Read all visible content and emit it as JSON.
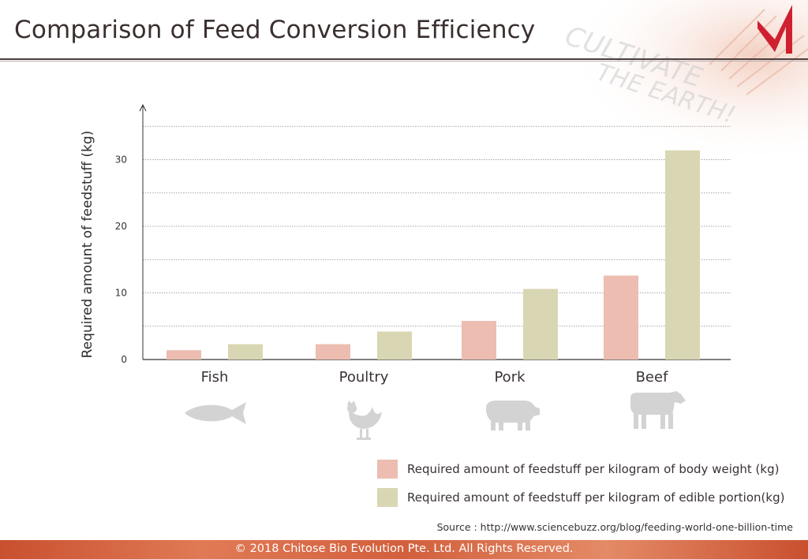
{
  "title": "Comparison of Feed Conversion Efficiency",
  "watermark": [
    "CULTIVATE",
    "THE EARTH!"
  ],
  "colors": {
    "body_weight": "#ecbdb0",
    "edible_portion": "#d9d7b3",
    "animal_silhouette": "#d3d3d3",
    "logo": "#d0202f",
    "footer": "#d2603d"
  },
  "icons": [
    "fish-icon",
    "rooster-icon",
    "pig-icon",
    "cow-icon"
  ],
  "chart_data": {
    "type": "bar",
    "categories": [
      "Fish",
      "Poultry",
      "Pork",
      "Beef"
    ],
    "series": [
      {
        "name": "Required amount of feedstuff per kilogram of body weight (kg)",
        "values": [
          1.4,
          2.3,
          5.8,
          12.6
        ]
      },
      {
        "name": "Required amount of feedstuff per kilogram of edible portion(kg)",
        "values": [
          2.3,
          4.2,
          10.6,
          31.4
        ]
      }
    ],
    "ylabel": "Required amount of feedstuff (kg)",
    "xlabel": "",
    "yticks": [
      0,
      10,
      20,
      30
    ],
    "ylim": [
      0,
      35
    ],
    "grid": true,
    "legend_placement": "bottom-right"
  },
  "source": "Source : http://www.sciencebuzz.org/blog/feeding-world-one-billion-time",
  "footer": "© 2018 Chitose Bio Evolution Pte. Ltd. All Rights Reserved."
}
